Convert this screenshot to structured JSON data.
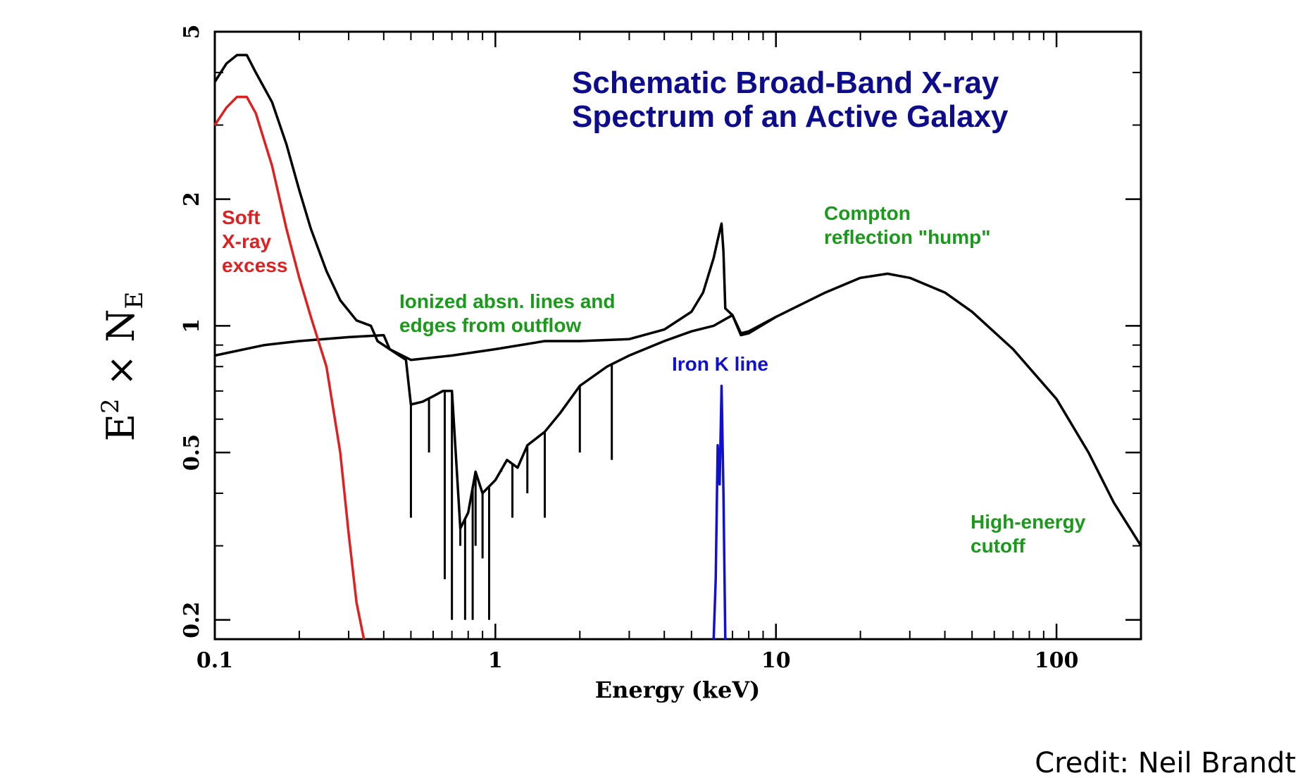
{
  "chart_data": {
    "type": "line",
    "title_line1": "Schematic Broad-Band X-ray",
    "title_line2": "Spectrum of an Active Galaxy",
    "xlabel": "Energy (keV)",
    "ylabel": "E² × N_E",
    "ylabel_main": "E",
    "ylabel_sup": "2",
    "ylabel_times": " × N",
    "ylabel_sub": "E",
    "xscale": "log",
    "yscale": "log",
    "xlim": [
      0.1,
      200
    ],
    "ylim": [
      0.18,
      5
    ],
    "xticks": [
      {
        "value": 0.1,
        "label": "0.1"
      },
      {
        "value": 1,
        "label": "1"
      },
      {
        "value": 10,
        "label": "10"
      },
      {
        "value": 100,
        "label": "100"
      }
    ],
    "yticks": [
      {
        "value": 0.2,
        "label": "0.2"
      },
      {
        "value": 0.5,
        "label": "0.5"
      },
      {
        "value": 1,
        "label": "1"
      },
      {
        "value": 2,
        "label": "2"
      },
      {
        "value": 5,
        "label": "5"
      }
    ],
    "colors": {
      "total": "#000000",
      "soft_excess": "#e02020",
      "iron_line": "#1010d0",
      "annotation_green": "#1a9a1a",
      "title": "#0c0c8c"
    },
    "series": [
      {
        "key": "total",
        "points": [
          [
            0.1,
            3.8
          ],
          [
            0.11,
            4.2
          ],
          [
            0.12,
            4.4
          ],
          [
            0.13,
            4.4
          ],
          [
            0.14,
            4.0
          ],
          [
            0.16,
            3.4
          ],
          [
            0.18,
            2.7
          ],
          [
            0.2,
            2.1
          ],
          [
            0.22,
            1.7
          ],
          [
            0.25,
            1.35
          ],
          [
            0.28,
            1.15
          ],
          [
            0.32,
            1.03
          ],
          [
            0.36,
            1.0
          ],
          [
            0.38,
            0.92
          ],
          [
            0.42,
            0.88
          ],
          [
            0.5,
            0.83
          ],
          [
            0.7,
            0.85
          ],
          [
            1.0,
            0.88
          ],
          [
            1.5,
            0.92
          ],
          [
            2.0,
            0.92
          ],
          [
            3.0,
            0.93
          ],
          [
            4.0,
            0.98
          ],
          [
            5.0,
            1.08
          ],
          [
            5.5,
            1.2
          ],
          [
            6.0,
            1.45
          ],
          [
            6.2,
            1.6
          ],
          [
            6.4,
            1.75
          ],
          [
            6.5,
            1.5
          ],
          [
            6.6,
            1.1
          ],
          [
            7.0,
            1.06
          ],
          [
            7.5,
            0.95
          ],
          [
            8.0,
            0.96
          ],
          [
            10,
            1.05
          ],
          [
            15,
            1.2
          ],
          [
            20,
            1.3
          ],
          [
            25,
            1.33
          ],
          [
            30,
            1.3
          ],
          [
            40,
            1.2
          ],
          [
            50,
            1.08
          ],
          [
            70,
            0.88
          ],
          [
            100,
            0.67
          ],
          [
            130,
            0.5
          ],
          [
            160,
            0.38
          ],
          [
            200,
            0.3
          ]
        ]
      },
      {
        "key": "continuum",
        "points": [
          [
            0.1,
            0.85
          ],
          [
            0.15,
            0.9
          ],
          [
            0.2,
            0.92
          ],
          [
            0.3,
            0.94
          ],
          [
            0.4,
            0.95
          ],
          [
            0.42,
            0.88
          ],
          [
            0.48,
            0.83
          ],
          [
            0.5,
            0.65
          ],
          [
            0.55,
            0.66
          ],
          [
            0.6,
            0.68
          ],
          [
            0.65,
            0.7
          ],
          [
            0.7,
            0.7
          ],
          [
            0.75,
            0.33
          ],
          [
            0.8,
            0.36
          ],
          [
            0.85,
            0.45
          ],
          [
            0.9,
            0.4
          ],
          [
            1.0,
            0.43
          ],
          [
            1.1,
            0.48
          ],
          [
            1.2,
            0.46
          ],
          [
            1.3,
            0.52
          ],
          [
            1.5,
            0.56
          ],
          [
            1.7,
            0.62
          ],
          [
            2.0,
            0.72
          ],
          [
            2.5,
            0.8
          ],
          [
            3.0,
            0.85
          ],
          [
            4.0,
            0.92
          ],
          [
            5.0,
            0.97
          ],
          [
            6.0,
            1.0
          ],
          [
            7.0,
            1.06
          ],
          [
            7.5,
            0.96
          ],
          [
            8.0,
            0.97
          ],
          [
            10,
            1.05
          ]
        ]
      },
      {
        "key": "soft_excess",
        "name": "Soft X-ray excess",
        "points": [
          [
            0.1,
            3.0
          ],
          [
            0.11,
            3.3
          ],
          [
            0.12,
            3.5
          ],
          [
            0.13,
            3.5
          ],
          [
            0.14,
            3.2
          ],
          [
            0.16,
            2.4
          ],
          [
            0.18,
            1.7
          ],
          [
            0.2,
            1.3
          ],
          [
            0.22,
            1.05
          ],
          [
            0.25,
            0.8
          ],
          [
            0.28,
            0.5
          ],
          [
            0.3,
            0.32
          ],
          [
            0.32,
            0.22
          ],
          [
            0.34,
            0.17
          ]
        ]
      },
      {
        "key": "iron_line",
        "name": "Iron K line",
        "points": [
          [
            6.0,
            0.17
          ],
          [
            6.1,
            0.25
          ],
          [
            6.2,
            0.52
          ],
          [
            6.3,
            0.42
          ],
          [
            6.4,
            0.72
          ],
          [
            6.5,
            0.4
          ],
          [
            6.6,
            0.17
          ]
        ]
      }
    ],
    "absorption_lines": [
      0.5,
      0.58,
      0.66,
      0.7,
      0.75,
      0.78,
      0.83,
      0.85,
      0.9,
      0.95,
      1.05,
      1.15,
      1.3,
      1.5,
      2.0,
      2.6
    ],
    "absorption_depths": [
      0.35,
      0.5,
      0.25,
      0.2,
      0.3,
      0.2,
      0.2,
      0.3,
      0.28,
      0.2,
      0.45,
      0.35,
      0.4,
      0.35,
      0.5,
      0.48
    ],
    "annotations": [
      {
        "key": "soft",
        "lines": [
          "Soft",
          "X-ray",
          "excess"
        ],
        "color": "#e02020"
      },
      {
        "key": "ionized",
        "lines": [
          "Ionized absn. lines and",
          "edges from outflow"
        ],
        "color": "#1a9a1a"
      },
      {
        "key": "iron",
        "lines": [
          "Iron K line"
        ],
        "color": "#1010d0"
      },
      {
        "key": "compton",
        "lines": [
          "Compton",
          "reflection \"hump\""
        ],
        "color": "#1a9a1a"
      },
      {
        "key": "cutoff",
        "lines": [
          "High-energy",
          "cutoff"
        ],
        "color": "#1a9a1a"
      }
    ]
  },
  "credit": "Credit: Neil Brandt"
}
